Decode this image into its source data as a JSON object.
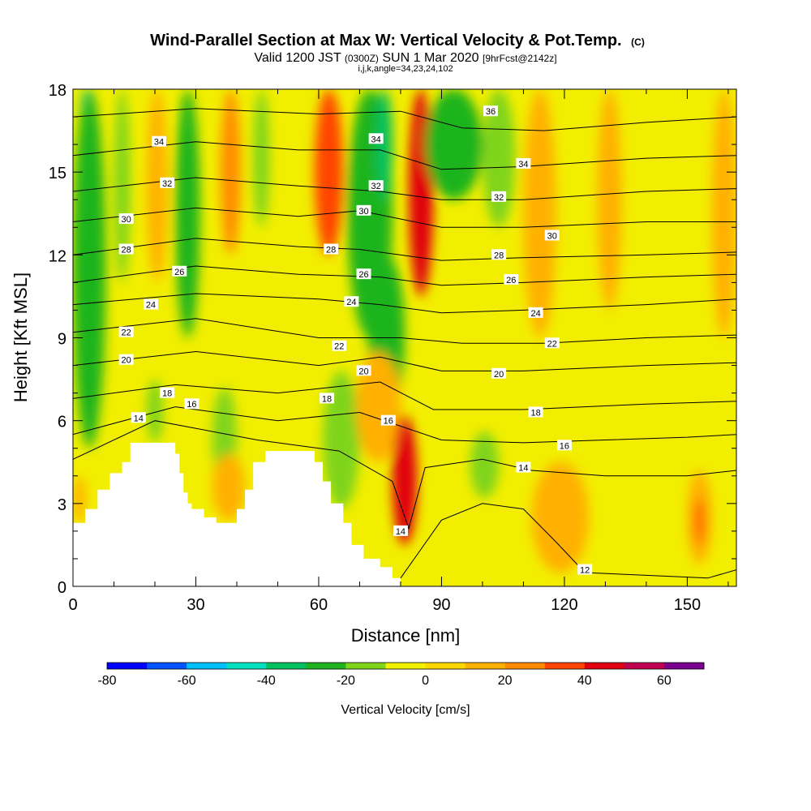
{
  "header": {
    "title_main": "Wind-Parallel Section at Max W: Vertical Velocity & Pot.Temp.",
    "title_mark": "(C)",
    "valid_a": "Valid 1200 JST ",
    "valid_b": "(0300Z)",
    "valid_c": " SUN 1 Mar 2020 ",
    "valid_d": "[9hrFcst@2142z]",
    "indices": "i,j,k,angle=34,23,24,102"
  },
  "chart_data": {
    "type": "heatmap",
    "xlabel": "Distance [nm]",
    "ylabel": "Height [Kft MSL]",
    "xlim": [
      0,
      162
    ],
    "ylim": [
      0,
      18
    ],
    "x_ticks": [
      "0",
      "30",
      "60",
      "90",
      "120",
      "150"
    ],
    "y_ticks": [
      "0",
      "3",
      "6",
      "9",
      "12",
      "15",
      "18"
    ],
    "colorbar": {
      "label": "Vertical Velocity [cm/s]",
      "tick_labels": [
        "-80",
        "-60",
        "-40",
        "-20",
        "0",
        "20",
        "40",
        "60"
      ],
      "levels": [
        -80,
        -70,
        -60,
        -50,
        -40,
        -30,
        -20,
        -10,
        0,
        10,
        20,
        30,
        40,
        50,
        60,
        70
      ],
      "colors": [
        "#0000ff",
        "#0055ff",
        "#00bfff",
        "#00e0c0",
        "#00c060",
        "#1fb41f",
        "#7fd41a",
        "#f0f000",
        "#ffd700",
        "#ffb000",
        "#ff8c00",
        "#ff4500",
        "#e00010",
        "#c00050",
        "#7a0090"
      ]
    },
    "velocity_cells": [
      {
        "x": [
          1,
          5
        ],
        "y": [
          6.5,
          18
        ],
        "w": -45
      },
      {
        "x": [
          0,
          8
        ],
        "y": [
          5,
          18
        ],
        "w": -22
      },
      {
        "x": [
          10,
          14
        ],
        "y": [
          11,
          18
        ],
        "w": -15
      },
      {
        "x": [
          18,
          23
        ],
        "y": [
          11,
          18
        ],
        "w": 18
      },
      {
        "x": [
          25,
          31
        ],
        "y": [
          9,
          18
        ],
        "w": -28
      },
      {
        "x": [
          36,
          41
        ],
        "y": [
          12,
          18
        ],
        "w": 22
      },
      {
        "x": [
          44,
          48
        ],
        "y": [
          13,
          18
        ],
        "w": -12
      },
      {
        "x": [
          59,
          66
        ],
        "y": [
          12,
          18
        ],
        "w": 38
      },
      {
        "x": [
          67,
          78
        ],
        "y": [
          9,
          18
        ],
        "w": -30
      },
      {
        "x": [
          72,
          81
        ],
        "y": [
          6.2,
          12
        ],
        "w": -22
      },
      {
        "x": [
          74,
          78
        ],
        "y": [
          14,
          18
        ],
        "w": -40
      },
      {
        "x": [
          82,
          88
        ],
        "y": [
          10.5,
          18
        ],
        "w": 45
      },
      {
        "x": [
          86,
          100
        ],
        "y": [
          14,
          18
        ],
        "w": -22
      },
      {
        "x": [
          100,
          108
        ],
        "y": [
          13,
          18
        ],
        "w": -15
      },
      {
        "x": [
          110,
          118
        ],
        "y": [
          9,
          18
        ],
        "w": 12
      },
      {
        "x": [
          128,
          134
        ],
        "y": [
          10,
          18
        ],
        "w": 12
      },
      {
        "x": [
          156,
          162
        ],
        "y": [
          9,
          18
        ],
        "w": 12
      },
      {
        "x": [
          18,
          22
        ],
        "y": [
          5.2,
          7.5
        ],
        "w": -12
      },
      {
        "x": [
          34,
          40
        ],
        "y": [
          3.5,
          7.2
        ],
        "w": -12
      },
      {
        "x": [
          61,
          70
        ],
        "y": [
          2.8,
          7.8
        ],
        "w": -20
      },
      {
        "x": [
          69,
          80
        ],
        "y": [
          4.5,
          8.5
        ],
        "w": 18
      },
      {
        "x": [
          78,
          84
        ],
        "y": [
          1.5,
          6.2
        ],
        "w": 40
      },
      {
        "x": [
          97,
          104
        ],
        "y": [
          3.2,
          5.6
        ],
        "w": -12
      },
      {
        "x": [
          0,
          3
        ],
        "y": [
          2.3,
          4
        ],
        "w": 15
      },
      {
        "x": [
          34,
          42
        ],
        "y": [
          2.4,
          4.8
        ],
        "w": 12
      },
      {
        "x": [
          112,
          126
        ],
        "y": [
          0.5,
          4.5
        ],
        "w": 10
      },
      {
        "x": [
          150,
          156
        ],
        "y": [
          0.8,
          4.2
        ],
        "w": 15
      },
      {
        "x": [
          152,
          154
        ],
        "y": [
          1.5,
          3.2
        ],
        "w": 32
      }
    ],
    "terrain_kft": [
      [
        0,
        2.3
      ],
      [
        3,
        2.3
      ],
      [
        3,
        2.8
      ],
      [
        6,
        2.8
      ],
      [
        6,
        3.5
      ],
      [
        9,
        3.5
      ],
      [
        9,
        4.1
      ],
      [
        12,
        4.1
      ],
      [
        12,
        4.5
      ],
      [
        14,
        4.5
      ],
      [
        14,
        5.2
      ],
      [
        25,
        5.2
      ],
      [
        25,
        4.8
      ],
      [
        26,
        4.8
      ],
      [
        26,
        4.1
      ],
      [
        27,
        4.1
      ],
      [
        27,
        3.4
      ],
      [
        28,
        3.4
      ],
      [
        28,
        3.0
      ],
      [
        29,
        3.0
      ],
      [
        29,
        2.8
      ],
      [
        32,
        2.8
      ],
      [
        32,
        2.5
      ],
      [
        35,
        2.5
      ],
      [
        35,
        2.3
      ],
      [
        40,
        2.3
      ],
      [
        40,
        2.8
      ],
      [
        42,
        2.8
      ],
      [
        42,
        3.5
      ],
      [
        44,
        3.5
      ],
      [
        44,
        4.5
      ],
      [
        47,
        4.5
      ],
      [
        47,
        4.9
      ],
      [
        59,
        4.9
      ],
      [
        59,
        4.5
      ],
      [
        61,
        4.5
      ],
      [
        61,
        3.8
      ],
      [
        63,
        3.8
      ],
      [
        63,
        3.0
      ],
      [
        66,
        3.0
      ],
      [
        66,
        2.3
      ],
      [
        68,
        2.3
      ],
      [
        68,
        1.5
      ],
      [
        71,
        1.5
      ],
      [
        71,
        1.0
      ],
      [
        75,
        1.0
      ],
      [
        75,
        0.7
      ],
      [
        78,
        0.7
      ],
      [
        78,
        0.3
      ],
      [
        80,
        0.3
      ],
      [
        80,
        0
      ],
      [
        0,
        0
      ]
    ],
    "isentropes": [
      {
        "label": "12",
        "pts": [
          [
            80,
            0.3
          ],
          [
            90,
            2.4
          ],
          [
            100,
            3.0
          ],
          [
            110,
            2.8
          ],
          [
            118,
            1.6
          ],
          [
            125,
            0.5
          ],
          [
            140,
            0.4
          ],
          [
            155,
            0.3
          ],
          [
            162,
            0.6
          ]
        ]
      },
      {
        "label": "14",
        "pts": [
          [
            0,
            4.6
          ],
          [
            20,
            6.0
          ],
          [
            45,
            5.3
          ],
          [
            65,
            4.9
          ],
          [
            78,
            3.8
          ],
          [
            82,
            2.1
          ],
          [
            86,
            4.3
          ],
          [
            100,
            4.6
          ],
          [
            112,
            4.2
          ],
          [
            130,
            4.0
          ],
          [
            150,
            4.0
          ],
          [
            162,
            4.2
          ]
        ]
      },
      {
        "label": "16",
        "pts": [
          [
            0,
            5.5
          ],
          [
            25,
            6.5
          ],
          [
            50,
            6.0
          ],
          [
            70,
            6.3
          ],
          [
            80,
            5.8
          ],
          [
            90,
            5.3
          ],
          [
            110,
            5.2
          ],
          [
            130,
            5.3
          ],
          [
            150,
            5.4
          ],
          [
            162,
            5.5
          ]
        ]
      },
      {
        "label": "18",
        "pts": [
          [
            0,
            6.8
          ],
          [
            25,
            7.3
          ],
          [
            50,
            7.0
          ],
          [
            75,
            7.4
          ],
          [
            88,
            6.4
          ],
          [
            110,
            6.4
          ],
          [
            140,
            6.6
          ],
          [
            162,
            6.7
          ]
        ]
      },
      {
        "label": "20",
        "pts": [
          [
            0,
            8.0
          ],
          [
            30,
            8.5
          ],
          [
            60,
            8.0
          ],
          [
            75,
            8.3
          ],
          [
            90,
            7.8
          ],
          [
            110,
            7.8
          ],
          [
            140,
            8.0
          ],
          [
            162,
            8.1
          ]
        ]
      },
      {
        "label": "22",
        "pts": [
          [
            0,
            9.2
          ],
          [
            30,
            9.7
          ],
          [
            60,
            9.0
          ],
          [
            80,
            9.0
          ],
          [
            95,
            8.8
          ],
          [
            115,
            8.8
          ],
          [
            140,
            9.0
          ],
          [
            162,
            9.1
          ]
        ]
      },
      {
        "label": "24",
        "pts": [
          [
            0,
            10.2
          ],
          [
            30,
            10.6
          ],
          [
            60,
            10.4
          ],
          [
            75,
            10.2
          ],
          [
            90,
            9.9
          ],
          [
            110,
            10.0
          ],
          [
            140,
            10.2
          ],
          [
            162,
            10.4
          ]
        ]
      },
      {
        "label": "26",
        "pts": [
          [
            0,
            11.0
          ],
          [
            30,
            11.6
          ],
          [
            55,
            11.3
          ],
          [
            75,
            11.2
          ],
          [
            90,
            10.9
          ],
          [
            110,
            11.0
          ],
          [
            140,
            11.2
          ],
          [
            162,
            11.3
          ]
        ]
      },
      {
        "label": "28",
        "pts": [
          [
            0,
            12.0
          ],
          [
            30,
            12.6
          ],
          [
            55,
            12.3
          ],
          [
            70,
            12.2
          ],
          [
            90,
            11.8
          ],
          [
            110,
            11.9
          ],
          [
            140,
            12.0
          ],
          [
            162,
            12.1
          ]
        ]
      },
      {
        "label": "30",
        "pts": [
          [
            0,
            13.2
          ],
          [
            30,
            13.7
          ],
          [
            55,
            13.4
          ],
          [
            70,
            13.6
          ],
          [
            90,
            13.0
          ],
          [
            110,
            13.0
          ],
          [
            140,
            13.2
          ],
          [
            162,
            13.2
          ]
        ]
      },
      {
        "label": "32",
        "pts": [
          [
            0,
            14.3
          ],
          [
            30,
            14.8
          ],
          [
            55,
            14.5
          ],
          [
            75,
            14.3
          ],
          [
            90,
            14.0
          ],
          [
            110,
            14.0
          ],
          [
            140,
            14.3
          ],
          [
            162,
            14.4
          ]
        ]
      },
      {
        "label": "34",
        "pts": [
          [
            0,
            15.6
          ],
          [
            30,
            16.1
          ],
          [
            55,
            15.8
          ],
          [
            75,
            15.8
          ],
          [
            90,
            15.1
          ],
          [
            110,
            15.2
          ],
          [
            140,
            15.5
          ],
          [
            162,
            15.6
          ]
        ]
      },
      {
        "label": "36",
        "pts": [
          [
            0,
            17.0
          ],
          [
            30,
            17.3
          ],
          [
            60,
            17.1
          ],
          [
            80,
            17.2
          ],
          [
            95,
            16.6
          ],
          [
            115,
            16.5
          ],
          [
            140,
            16.8
          ],
          [
            162,
            17.0
          ]
        ]
      }
    ],
    "contour_labels": [
      {
        "text": "34",
        "x": 21,
        "y": 16.1
      },
      {
        "text": "32",
        "x": 23,
        "y": 14.6
      },
      {
        "text": "30",
        "x": 13,
        "y": 13.3
      },
      {
        "text": "28",
        "x": 13,
        "y": 12.2
      },
      {
        "text": "26",
        "x": 26,
        "y": 11.4
      },
      {
        "text": "24",
        "x": 19,
        "y": 10.2
      },
      {
        "text": "22",
        "x": 13,
        "y": 9.2
      },
      {
        "text": "20",
        "x": 13,
        "y": 8.2
      },
      {
        "text": "18",
        "x": 23,
        "y": 7.0
      },
      {
        "text": "16",
        "x": 29,
        "y": 6.6
      },
      {
        "text": "14",
        "x": 16,
        "y": 6.1
      },
      {
        "text": "34",
        "x": 74,
        "y": 16.2
      },
      {
        "text": "32",
        "x": 74,
        "y": 14.5
      },
      {
        "text": "30",
        "x": 71,
        "y": 13.6
      },
      {
        "text": "28",
        "x": 63,
        "y": 12.2
      },
      {
        "text": "26",
        "x": 71,
        "y": 11.3
      },
      {
        "text": "24",
        "x": 68,
        "y": 10.3
      },
      {
        "text": "22",
        "x": 65,
        "y": 8.7
      },
      {
        "text": "20",
        "x": 71,
        "y": 7.8
      },
      {
        "text": "18",
        "x": 62,
        "y": 6.8
      },
      {
        "text": "16",
        "x": 77,
        "y": 6.0
      },
      {
        "text": "14",
        "x": 80,
        "y": 2.0
      },
      {
        "text": "36",
        "x": 102,
        "y": 17.2
      },
      {
        "text": "34",
        "x": 110,
        "y": 15.3
      },
      {
        "text": "32",
        "x": 104,
        "y": 14.1
      },
      {
        "text": "30",
        "x": 117,
        "y": 12.7
      },
      {
        "text": "28",
        "x": 104,
        "y": 12.0
      },
      {
        "text": "26",
        "x": 107,
        "y": 11.1
      },
      {
        "text": "24",
        "x": 113,
        "y": 9.9
      },
      {
        "text": "22",
        "x": 117,
        "y": 8.8
      },
      {
        "text": "20",
        "x": 104,
        "y": 7.7
      },
      {
        "text": "18",
        "x": 113,
        "y": 6.3
      },
      {
        "text": "16",
        "x": 120,
        "y": 5.1
      },
      {
        "text": "14",
        "x": 110,
        "y": 4.3
      },
      {
        "text": "12",
        "x": 125,
        "y": 0.6
      }
    ]
  }
}
